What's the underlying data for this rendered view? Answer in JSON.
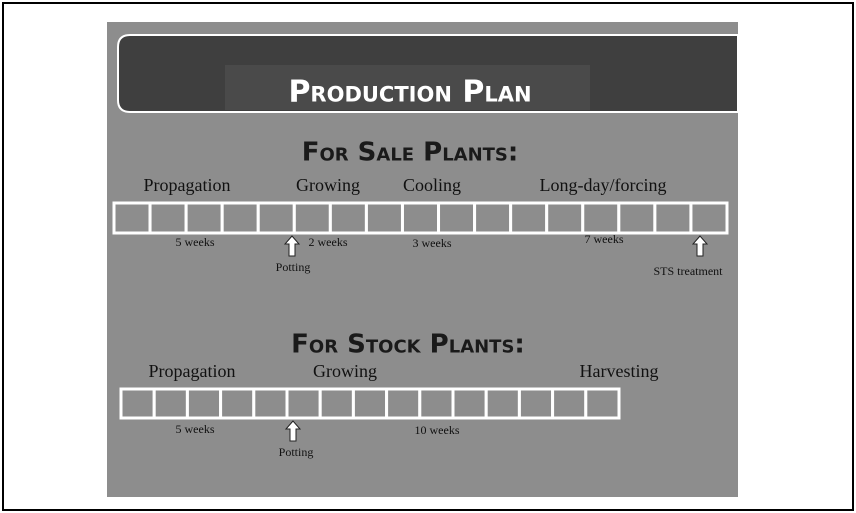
{
  "title": "Production Plan",
  "sections": [
    {
      "heading": "For Sale Plants:",
      "phases": [
        "Propagation",
        "Growing",
        "Cooling",
        "Long-day/forcing"
      ],
      "durations": [
        "5 weeks",
        "2 weeks",
        "3 weeks",
        "7 weeks"
      ],
      "events": [
        "Potting",
        "STS treatment"
      ]
    },
    {
      "heading": "For Stock Plants:",
      "phases": [
        "Propagation",
        "Growing",
        "Harvesting"
      ],
      "durations": [
        "5 weeks",
        "10 weeks"
      ],
      "events": [
        "Potting"
      ]
    }
  ]
}
